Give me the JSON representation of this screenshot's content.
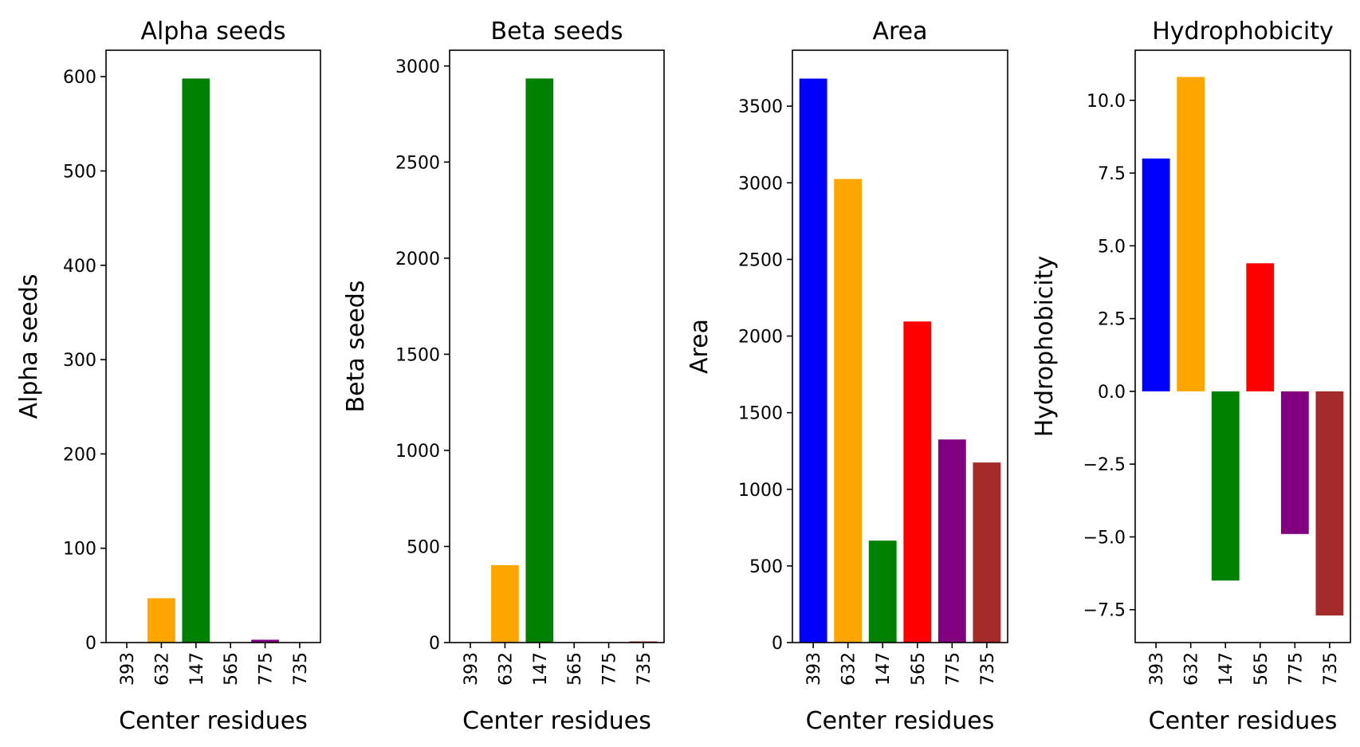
{
  "chart_data": [
    {
      "type": "bar",
      "title": "Alpha seeds",
      "xlabel": "Center residues",
      "ylabel": "Alpha seeds",
      "categories": [
        "393",
        "632",
        "147",
        "565",
        "775",
        "735"
      ],
      "values": [
        0,
        47,
        598,
        0,
        3,
        0
      ],
      "colors": [
        "#0000ff",
        "#ffa500",
        "#008000",
        "#ff0000",
        "#800080",
        "#a52a2a"
      ],
      "ylim": [
        0,
        628
      ],
      "yticks": [
        0,
        100,
        200,
        300,
        400,
        500,
        600
      ],
      "ytick_labels": [
        "0",
        "100",
        "200",
        "300",
        "400",
        "500",
        "600"
      ],
      "grid": false,
      "legend": "none"
    },
    {
      "type": "bar",
      "title": "Beta seeds",
      "xlabel": "Center residues",
      "ylabel": "Beta seeds",
      "categories": [
        "393",
        "632",
        "147",
        "565",
        "775",
        "735"
      ],
      "values": [
        0,
        403,
        2935,
        0,
        0,
        6
      ],
      "colors": [
        "#0000ff",
        "#ffa500",
        "#008000",
        "#ff0000",
        "#800080",
        "#a52a2a"
      ],
      "ylim": [
        0,
        3082
      ],
      "yticks": [
        0,
        500,
        1000,
        1500,
        2000,
        2500,
        3000
      ],
      "ytick_labels": [
        "0",
        "500",
        "1000",
        "1500",
        "2000",
        "2500",
        "3000"
      ],
      "grid": false,
      "legend": "none"
    },
    {
      "type": "bar",
      "title": "Area",
      "xlabel": "Center residues",
      "ylabel": "Area",
      "categories": [
        "393",
        "632",
        "147",
        "565",
        "775",
        "735"
      ],
      "values": [
        3680,
        3025,
        665,
        2095,
        1325,
        1175
      ],
      "colors": [
        "#0000ff",
        "#ffa500",
        "#008000",
        "#ff0000",
        "#800080",
        "#a52a2a"
      ],
      "ylim": [
        0,
        3865
      ],
      "yticks": [
        0,
        500,
        1000,
        1500,
        2000,
        2500,
        3000,
        3500
      ],
      "ytick_labels": [
        "0",
        "500",
        "1000",
        "1500",
        "2000",
        "2500",
        "3000",
        "3500"
      ],
      "grid": false,
      "legend": "none"
    },
    {
      "type": "bar",
      "title": "Hydrophobicity",
      "xlabel": "Center residues",
      "ylabel": "Hydrophobicity",
      "categories": [
        "393",
        "632",
        "147",
        "565",
        "775",
        "735"
      ],
      "values": [
        8.0,
        10.8,
        -6.5,
        4.4,
        -4.9,
        -7.7
      ],
      "colors": [
        "#0000ff",
        "#ffa500",
        "#008000",
        "#ff0000",
        "#800080",
        "#a52a2a"
      ],
      "ylim": [
        -8.63,
        11.72
      ],
      "yticks": [
        -7.5,
        -5.0,
        -2.5,
        0.0,
        2.5,
        5.0,
        7.5,
        10.0
      ],
      "ytick_labels": [
        "−7.5",
        "−5.0",
        "−2.5",
        "0.0",
        "2.5",
        "5.0",
        "7.5",
        "10.0"
      ],
      "grid": false,
      "legend": "none"
    }
  ]
}
